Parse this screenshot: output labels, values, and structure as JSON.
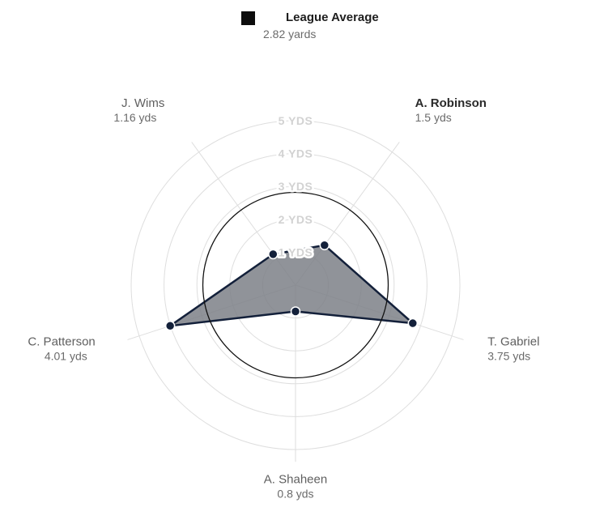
{
  "legend": {
    "name": "League Average",
    "value_label": "2.82 yards",
    "color": "#0d0d0d"
  },
  "chart_data": {
    "type": "radar",
    "unit_label": "YDS",
    "rmax": 5,
    "ring_labels": [
      "1 YDS",
      "2 YDS",
      "3 YDS",
      "4 YDS",
      "5 YDS"
    ],
    "ring_values": [
      1,
      2,
      3,
      4,
      5
    ],
    "average": 2.82,
    "series": [
      {
        "points": [
          {
            "name": "A. Robinson",
            "value": 1.5,
            "value_label": "1.5 yds",
            "highlight": true
          },
          {
            "name": "T. Gabriel",
            "value": 3.75,
            "value_label": "3.75 yds",
            "highlight": false
          },
          {
            "name": "A. Shaheen",
            "value": 0.8,
            "value_label": "0.8 yds",
            "highlight": false
          },
          {
            "name": "C. Patterson",
            "value": 4.01,
            "value_label": "4.01 yds",
            "highlight": false
          },
          {
            "name": "J. Wims",
            "value": 1.16,
            "value_label": "1.16 yds",
            "highlight": false
          }
        ]
      }
    ],
    "colors": {
      "area": "#7d8087",
      "outline": "#13203a",
      "grid": "#dedede",
      "average": "#111111"
    }
  }
}
